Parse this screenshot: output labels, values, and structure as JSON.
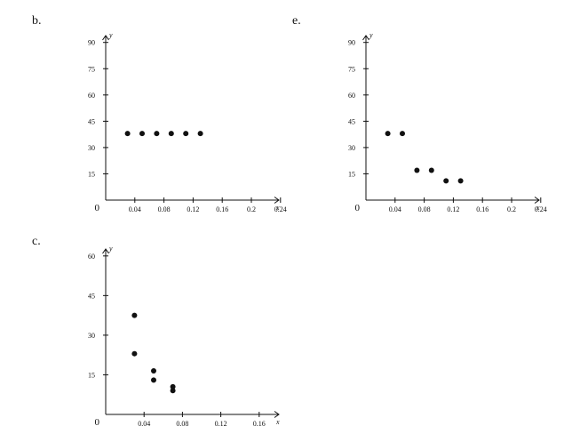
{
  "chart_data": [
    {
      "panel_label": "b.",
      "type": "scatter",
      "xlabel": "x",
      "ylabel": "y",
      "origin_label": "0",
      "xlim": [
        0,
        0.28
      ],
      "ylim": [
        0,
        95
      ],
      "xticks": [
        {
          "value": 0.04,
          "label": "0.04"
        },
        {
          "value": 0.08,
          "label": "0.08"
        },
        {
          "value": 0.12,
          "label": "0.12"
        },
        {
          "value": 0.16,
          "label": "0.16"
        },
        {
          "value": 0.2,
          "label": "0.2"
        },
        {
          "value": 0.24,
          "label": "0.24"
        }
      ],
      "yticks": [
        {
          "value": 15,
          "label": "15"
        },
        {
          "value": 30,
          "label": "30"
        },
        {
          "value": 45,
          "label": "45"
        },
        {
          "value": 60,
          "label": "60"
        },
        {
          "value": 75,
          "label": "75"
        },
        {
          "value": 90,
          "label": "90"
        }
      ],
      "points": [
        {
          "x": 0.03,
          "y": 38
        },
        {
          "x": 0.05,
          "y": 38
        },
        {
          "x": 0.07,
          "y": 38
        },
        {
          "x": 0.09,
          "y": 38
        },
        {
          "x": 0.11,
          "y": 38
        },
        {
          "x": 0.13,
          "y": 38
        }
      ]
    },
    {
      "panel_label": "e.",
      "type": "scatter",
      "xlabel": "x",
      "ylabel": "y",
      "origin_label": "0",
      "xlim": [
        0,
        0.28
      ],
      "ylim": [
        0,
        95
      ],
      "xticks": [
        {
          "value": 0.04,
          "label": "0.04"
        },
        {
          "value": 0.08,
          "label": "0.08"
        },
        {
          "value": 0.12,
          "label": "0.12"
        },
        {
          "value": 0.16,
          "label": "0.16"
        },
        {
          "value": 0.2,
          "label": "0.2"
        },
        {
          "value": 0.24,
          "label": "0.24"
        }
      ],
      "yticks": [
        {
          "value": 15,
          "label": "15"
        },
        {
          "value": 30,
          "label": "30"
        },
        {
          "value": 45,
          "label": "45"
        },
        {
          "value": 60,
          "label": "60"
        },
        {
          "value": 75,
          "label": "75"
        },
        {
          "value": 90,
          "label": "90"
        }
      ],
      "points": [
        {
          "x": 0.03,
          "y": 38
        },
        {
          "x": 0.05,
          "y": 38
        },
        {
          "x": 0.07,
          "y": 17
        },
        {
          "x": 0.09,
          "y": 17
        },
        {
          "x": 0.11,
          "y": 11
        },
        {
          "x": 0.13,
          "y": 11
        }
      ]
    },
    {
      "panel_label": "c.",
      "type": "scatter",
      "xlabel": "x",
      "ylabel": "y",
      "origin_label": "0",
      "xlim": [
        0,
        0.19
      ],
      "ylim": [
        0,
        63
      ],
      "xticks": [
        {
          "value": 0.04,
          "label": "0.04"
        },
        {
          "value": 0.08,
          "label": "0.08"
        },
        {
          "value": 0.12,
          "label": "0.12"
        },
        {
          "value": 0.16,
          "label": "0.16"
        }
      ],
      "yticks": [
        {
          "value": 15,
          "label": "15"
        },
        {
          "value": 30,
          "label": "30"
        },
        {
          "value": 45,
          "label": "45"
        },
        {
          "value": 60,
          "label": "60"
        }
      ],
      "points": [
        {
          "x": 0.03,
          "y": 37.5
        },
        {
          "x": 0.03,
          "y": 23
        },
        {
          "x": 0.05,
          "y": 16.5
        },
        {
          "x": 0.05,
          "y": 13
        },
        {
          "x": 0.07,
          "y": 10.5
        },
        {
          "x": 0.07,
          "y": 9
        }
      ]
    }
  ]
}
